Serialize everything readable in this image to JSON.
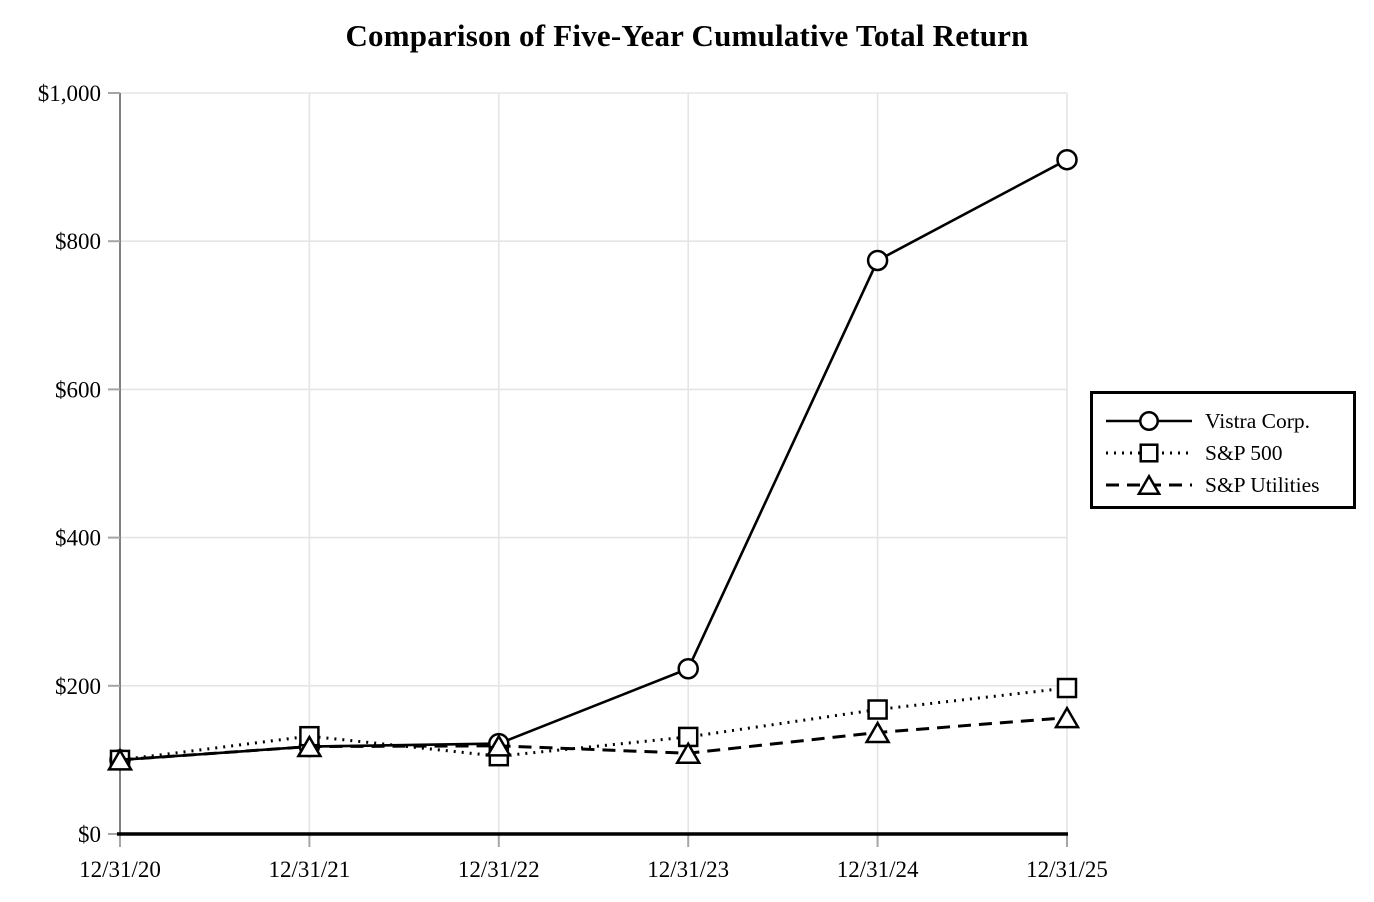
{
  "title": "Comparison of Five-Year Cumulative Total Return",
  "chart_data": {
    "type": "line",
    "x": [
      "12/31/20",
      "12/31/21",
      "12/31/22",
      "12/31/23",
      "12/31/24",
      "12/31/25"
    ],
    "series": [
      {
        "name": "Vistra Corp.",
        "line_style": "solid",
        "marker": "circle",
        "values": [
          100,
          118,
          122,
          223,
          774,
          910
        ]
      },
      {
        "name": "S&P 500",
        "line_style": "dotted",
        "marker": "square",
        "values": [
          100,
          132,
          105,
          131,
          168,
          197
        ]
      },
      {
        "name": "S&P Utilities",
        "line_style": "dashed",
        "marker": "triangle",
        "values": [
          100,
          118,
          119,
          109,
          137,
          157
        ]
      }
    ],
    "xlabel": "",
    "ylabel": "",
    "ylim": [
      0,
      1000
    ],
    "ytick_step": 200,
    "ytick_labels": [
      "$0",
      "$200",
      "$400",
      "$600",
      "$800",
      "$1,000"
    ],
    "grid": true,
    "legend_position": "right-middle",
    "colors": {
      "series": "#000000",
      "marker_fill": "#ffffff",
      "grid": "#e5e5e5",
      "y_axis": "#808080",
      "x_axis": "#000000",
      "tick": "#a6a6a6",
      "background": "#ffffff"
    }
  }
}
